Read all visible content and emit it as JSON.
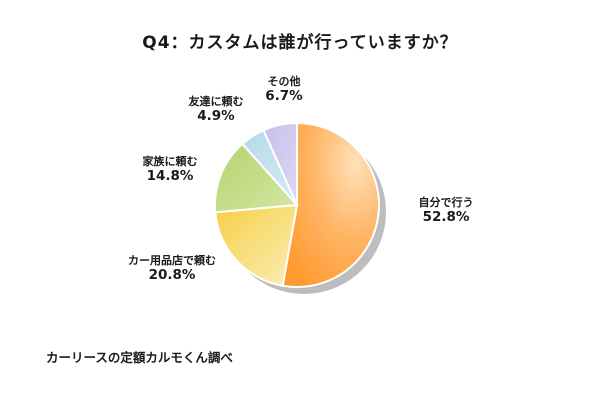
{
  "chart_data": {
    "type": "pie",
    "title": "Q4：カスタムは誰が行っていますか？",
    "categories": [
      "自分で行う",
      "カー用品店で頼む",
      "家族に頼む",
      "友達に頼む",
      "その他"
    ],
    "values": [
      52.8,
      20.8,
      14.8,
      4.9,
      6.7
    ],
    "value_labels": [
      "52.8%",
      "20.8%",
      "14.8%",
      "4.9%",
      "6.7%"
    ],
    "colors": [
      "#ffa94d",
      "#f7d35a",
      "#bcd87a",
      "#bfe0ec",
      "#cdc8ec"
    ],
    "start_angle": "12 o'clock",
    "direction": "clockwise",
    "legend": "none (direct labels)",
    "source": "カーリースの定額カルモくん調べ"
  },
  "labels": {
    "self": {
      "name": "自分で行う",
      "pct": "52.8%"
    },
    "shop": {
      "name": "カー用品店で頼む",
      "pct": "20.8%"
    },
    "family": {
      "name": "家族に頼む",
      "pct": "14.8%"
    },
    "friend": {
      "name": "友達に頼む",
      "pct": "4.9%"
    },
    "other": {
      "name": "その他",
      "pct": "6.7%"
    }
  }
}
